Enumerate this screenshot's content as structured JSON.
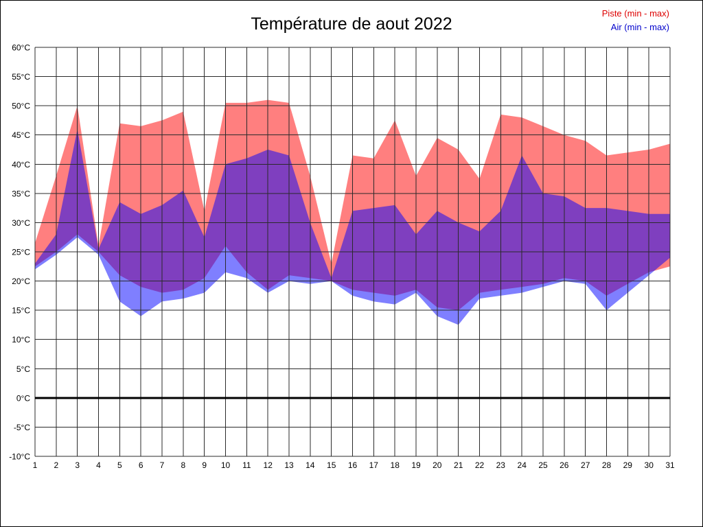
{
  "page": {
    "title": "Température de aout 2022"
  },
  "legend": [
    {
      "label": "Piste (min - max)",
      "color": "#dd0000"
    },
    {
      "label": "Air (min - max)",
      "color": "#0000cc"
    }
  ],
  "chart_data": {
    "type": "area",
    "subtype": "min-max-bands",
    "title": "Température de aout 2022",
    "xlabel": "",
    "ylabel": "",
    "grid": true,
    "legend_position": "top-right",
    "x": [
      1,
      2,
      3,
      4,
      5,
      6,
      7,
      8,
      9,
      10,
      11,
      12,
      13,
      14,
      15,
      16,
      17,
      18,
      19,
      20,
      21,
      22,
      23,
      24,
      25,
      26,
      27,
      28,
      29,
      30,
      31
    ],
    "ylim": [
      -10,
      60
    ],
    "ytick_values": [
      60,
      55,
      50,
      45,
      40,
      35,
      30,
      25,
      20,
      15,
      10,
      5,
      0,
      -5,
      -10
    ],
    "ytick_labels": [
      "60°C",
      "55°C",
      "50°C",
      "45°C",
      "40°C",
      "35°C",
      "30°C",
      "25°C",
      "20°C",
      "15°C",
      "10°C",
      "5°C",
      "0°C",
      "-5°C",
      "-10°C"
    ],
    "zero_line": true,
    "band_opacity": 0.5,
    "series": [
      {
        "id": "piste",
        "name": "Piste (min - max)",
        "color": "#ff0000",
        "max": [
          26.5,
          38,
          50,
          26,
          47,
          46.5,
          47.5,
          49,
          32,
          50.5,
          50.5,
          51,
          50.5,
          38,
          23,
          41.5,
          41,
          47.5,
          38,
          44.5,
          42.5,
          37.5,
          48.5,
          48,
          46.5,
          45,
          44,
          41.5,
          42,
          42.5,
          43.5
        ],
        "min": [
          22.5,
          25,
          28,
          25,
          21,
          19,
          18,
          18.5,
          20.5,
          26,
          21.5,
          18.5,
          21,
          20.5,
          20,
          18.5,
          18,
          17.5,
          18.5,
          15.5,
          15,
          18,
          18.5,
          19,
          19.5,
          20.5,
          20,
          17.5,
          19.5,
          21.5,
          22.5
        ]
      },
      {
        "id": "air",
        "name": "Air (min - max)",
        "color": "#0000ff",
        "max": [
          23,
          28,
          46,
          25.5,
          33.5,
          31.5,
          33,
          35.5,
          27.5,
          40,
          41,
          42.5,
          41.5,
          30,
          20.5,
          32,
          32.5,
          33,
          28,
          32,
          30,
          28.5,
          32,
          41.5,
          35,
          34.5,
          32.5,
          32.5,
          32,
          31.5,
          31.5
        ],
        "min": [
          22,
          24.5,
          27.5,
          24.5,
          16.5,
          14,
          16.5,
          17,
          18,
          21.5,
          20.5,
          18,
          20,
          19.5,
          20,
          17.5,
          16.5,
          16,
          18,
          14,
          12.5,
          17,
          17.5,
          18,
          19,
          20,
          19.5,
          15,
          18,
          21,
          24
        ]
      }
    ]
  }
}
